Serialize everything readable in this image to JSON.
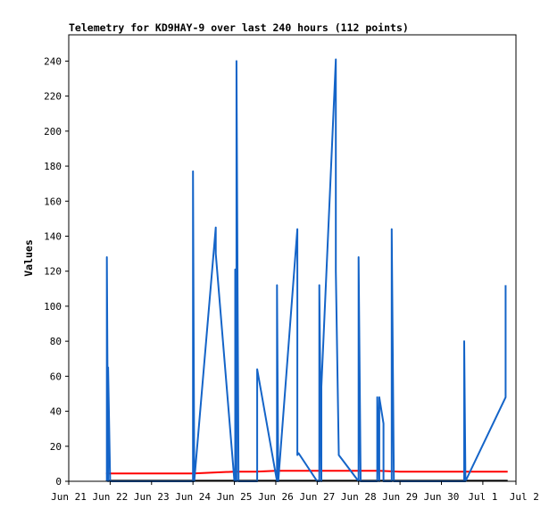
{
  "chart_data": {
    "type": "line",
    "title": "Telemetry for KD9HAY-9 over last 240 hours (112 points)",
    "ylabel": "Values",
    "xlabel": "",
    "ylim": [
      0,
      255
    ],
    "xlim": [
      0,
      10.8
    ],
    "x_ticks": [
      {
        "x": 0,
        "label": "Jun 21"
      },
      {
        "x": 1,
        "label": "Jun 22"
      },
      {
        "x": 2,
        "label": "Jun 23"
      },
      {
        "x": 3,
        "label": "Jun 24"
      },
      {
        "x": 4,
        "label": "Jun 25"
      },
      {
        "x": 5,
        "label": "Jun 26"
      },
      {
        "x": 6,
        "label": "Jun 27"
      },
      {
        "x": 7,
        "label": "Jun 28"
      },
      {
        "x": 8,
        "label": "Jun 29"
      },
      {
        "x": 9,
        "label": "Jun 30"
      },
      {
        "x": 10,
        "label": "Jul 1"
      },
      {
        "x": 11,
        "label": "Jul 2"
      }
    ],
    "y_ticks": [
      0,
      20,
      40,
      60,
      80,
      100,
      120,
      140,
      160,
      180,
      200,
      220,
      240
    ],
    "grid": false,
    "series": [
      {
        "color": "#ff0000",
        "x": [
          0.9,
          2.1,
          3.0,
          4.0,
          4.5,
          5.0,
          5.5,
          6.0,
          6.5,
          7.0,
          7.5,
          8.0,
          9.0,
          9.55,
          9.6,
          10.6
        ],
        "y": [
          4.5,
          4.5,
          4.5,
          5.5,
          5.5,
          6,
          6,
          6,
          6,
          6,
          6,
          5.5,
          5.5,
          5.5,
          5.5,
          5.5
        ]
      },
      {
        "color": "#000000",
        "x": [
          0.9,
          10.6
        ],
        "y": [
          0.3,
          0.3
        ]
      },
      {
        "color": "#1464c8",
        "x": [
          0.92,
          0.92,
          0.95,
          0.95,
          1.0,
          3.0,
          3.0,
          3.03,
          3.55,
          3.55,
          4.0,
          4.02,
          4.02,
          4.05,
          4.05,
          4.1,
          4.55,
          4.55,
          5.03,
          5.03,
          5.06,
          5.52,
          5.52,
          5.55,
          6.0,
          6.05,
          6.05,
          6.1,
          6.1,
          6.45,
          6.45,
          6.52,
          6.52,
          7.0,
          7.0,
          7.05,
          7.45,
          7.45,
          7.5,
          7.5,
          7.6,
          7.6,
          7.8,
          7.8,
          7.85,
          9.55,
          9.55,
          9.58,
          10.55,
          10.55
        ],
        "y": [
          0,
          128,
          0,
          65,
          0,
          0,
          177,
          0,
          145,
          130,
          0,
          0,
          121,
          0,
          240,
          0,
          0,
          64,
          0,
          112,
          0,
          144,
          15,
          16,
          0,
          0,
          112,
          0,
          54,
          241,
          120,
          16,
          15,
          0,
          128,
          0,
          0,
          48,
          0,
          48,
          33,
          0,
          0,
          144,
          0,
          0,
          80,
          0,
          48,
          112
        ]
      }
    ]
  }
}
